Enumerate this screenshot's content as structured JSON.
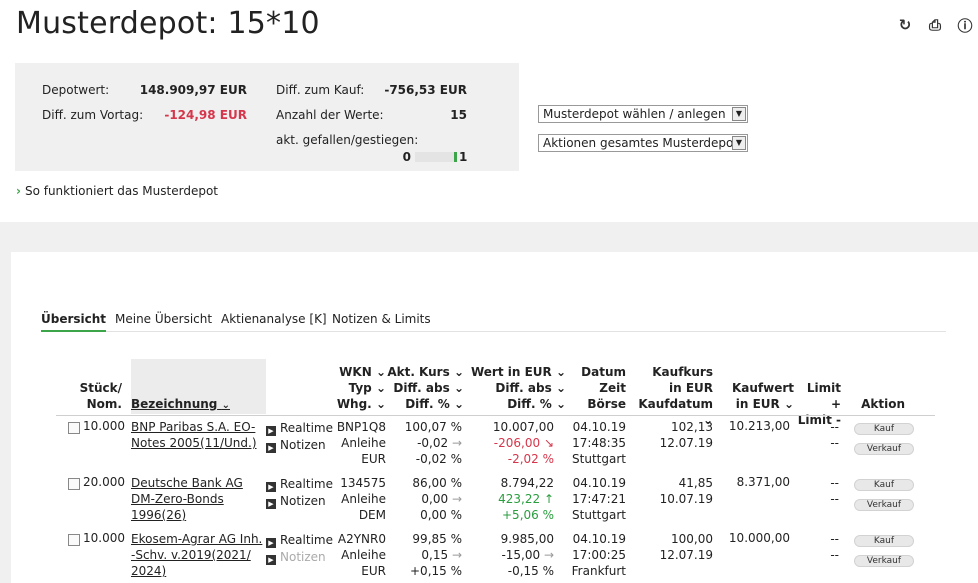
{
  "page": {
    "title": "Musterdepot: 15*10"
  },
  "icons": {
    "refresh": "refresh-icon",
    "print": "print-icon",
    "help": "help-icon"
  },
  "summary": {
    "depotwert_label": "Depotwert:",
    "depotwert_value": "148.909,97 EUR",
    "diff_vortag_label": "Diff. zum Vortag:",
    "diff_vortag_value": "-124,98 EUR",
    "diff_kauf_label": "Diff. zum Kauf:",
    "diff_kauf_value": "-756,53 EUR",
    "anzahl_label": "Anzahl der Werte:",
    "anzahl_value": "15",
    "gefallen_label": "akt. gefallen/gestiegen:",
    "gefallen_value": "0",
    "gestiegen_value": "1",
    "gestiegen_fraction": 1.0
  },
  "selects": {
    "depot": "Musterdepot wählen / anlegen",
    "aktionen": "Aktionen gesamtes Musterdepot"
  },
  "howto": "So funktioniert das Musterdepot",
  "tabs": [
    "Übersicht",
    "Meine Übersicht",
    "Aktienanalyse [K]",
    "Notizen & Limits"
  ],
  "colors": {
    "accent": "#3ca54a",
    "negative": "#d6364b",
    "positive": "#2a9d3e"
  },
  "table": {
    "headers": {
      "stueck1": "Stück/",
      "stueck2": "Nom.",
      "bezeichnung": "Bezeichnung",
      "wkn": "WKN",
      "typ": "Typ",
      "whg": "Whg.",
      "akt_kurs": "Akt. Kurs",
      "diff_abs": "Diff. abs",
      "diff_pct": "Diff. %",
      "wert": "Wert in EUR",
      "wert_diff_abs": "Diff. abs",
      "wert_diff_pct": "Diff. %",
      "datum": "Datum",
      "zeit": "Zeit",
      "boerse": "Börse",
      "kaufkurs1": "Kaufkurs",
      "kaufkurs2": "in EUR",
      "kaufdatum": "Kaufdatum",
      "kaufwert1": "Kaufwert",
      "kaufwert2": "in EUR",
      "limit1": "Limit +",
      "limit2": "Limit -",
      "aktion": "Aktion"
    },
    "sort_icon": "chevron-down-icon",
    "rows": [
      {
        "stueck": "10.000",
        "bez1": "BNP Paribas S.A. EO-",
        "bez2": "Notes 2005(11/Und.)",
        "bez3": "",
        "realtime": "Realtime",
        "notizen": "Notizen",
        "notizen_muted": false,
        "wkn": "BNP1Q8",
        "typ": "Anleihe",
        "whg": "EUR",
        "kurs": "100,07 %",
        "kurs_abs": "-0,02",
        "kurs_pct": "-0,02 %",
        "wert": "10.007,00",
        "wert_abs": "-206,00",
        "wert_pct": "-2,02 %",
        "wert_trend": "down",
        "datum": "04.10.19",
        "zeit": "17:48:35",
        "boerse": "Stuttgart",
        "kaufkurs": "102,13",
        "kaufdatum": "12.07.19",
        "kaufwert": "10.213,00",
        "limit_plus": "--",
        "limit_minus": "--",
        "kauf": "Kauf",
        "verkauf": "Verkauf"
      },
      {
        "stueck": "20.000",
        "bez1": "Deutsche Bank AG",
        "bez2": "DM-Zero-Bonds",
        "bez3": "1996(26)",
        "realtime": "Realtime",
        "notizen": "Notizen",
        "notizen_muted": false,
        "wkn": "134575",
        "typ": "Anleihe",
        "whg": "DEM",
        "kurs": "86,00 %",
        "kurs_abs": "0,00",
        "kurs_pct": "0,00 %",
        "wert": "8.794,22",
        "wert_abs": "423,22",
        "wert_pct": "+5,06 %",
        "wert_trend": "up",
        "datum": "04.10.19",
        "zeit": "17:47:21",
        "boerse": "Stuttgart",
        "kaufkurs": "41,85",
        "kaufdatum": "10.07.19",
        "kaufwert": "8.371,00",
        "limit_plus": "--",
        "limit_minus": "--",
        "kauf": "Kauf",
        "verkauf": "Verkauf"
      },
      {
        "stueck": "10.000",
        "bez1": "Ekosem-Agrar AG Inh.",
        "bez2": "-Schv. v.2019(2021/",
        "bez3": "2024)",
        "realtime": "Realtime",
        "notizen": "Notizen",
        "notizen_muted": true,
        "wkn": "A2YNR0",
        "typ": "Anleihe",
        "whg": "EUR",
        "kurs": "99,85 %",
        "kurs_abs": "0,15",
        "kurs_pct": "+0,15 %",
        "wert": "9.985,00",
        "wert_abs": "-15,00",
        "wert_pct": "-0,15 %",
        "wert_trend": "flat",
        "datum": "04.10.19",
        "zeit": "17:00:25",
        "boerse": "Frankfurt",
        "kaufkurs": "100,00",
        "kaufdatum": "12.07.19",
        "kaufwert": "10.000,00",
        "limit_plus": "--",
        "limit_minus": "--",
        "kauf": "Kauf",
        "verkauf": "Verkauf"
      }
    ]
  }
}
